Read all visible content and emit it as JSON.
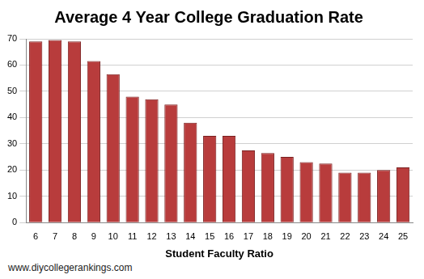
{
  "chart_data": {
    "type": "bar",
    "title": "Average 4 Year College Graduation Rate",
    "x_label": "Student Faculty Ratio",
    "annotations": [
      "www.diycollegerankings.com"
    ],
    "categories": [
      "6",
      "7",
      "8",
      "9",
      "10",
      "11",
      "12",
      "13",
      "14",
      "15",
      "16",
      "17",
      "18",
      "19",
      "20",
      "21",
      "22",
      "23",
      "24",
      "25"
    ],
    "values": [
      69,
      69.5,
      69,
      61.5,
      56.5,
      48,
      47,
      45,
      38,
      33,
      33,
      27.5,
      26.5,
      25,
      23,
      22.5,
      19,
      19,
      20,
      21
    ],
    "color": "#b83c3c",
    "ylim": [
      0,
      70
    ],
    "yticks": [
      0,
      10,
      20,
      30,
      40,
      50,
      60,
      70
    ],
    "grid": true
  }
}
